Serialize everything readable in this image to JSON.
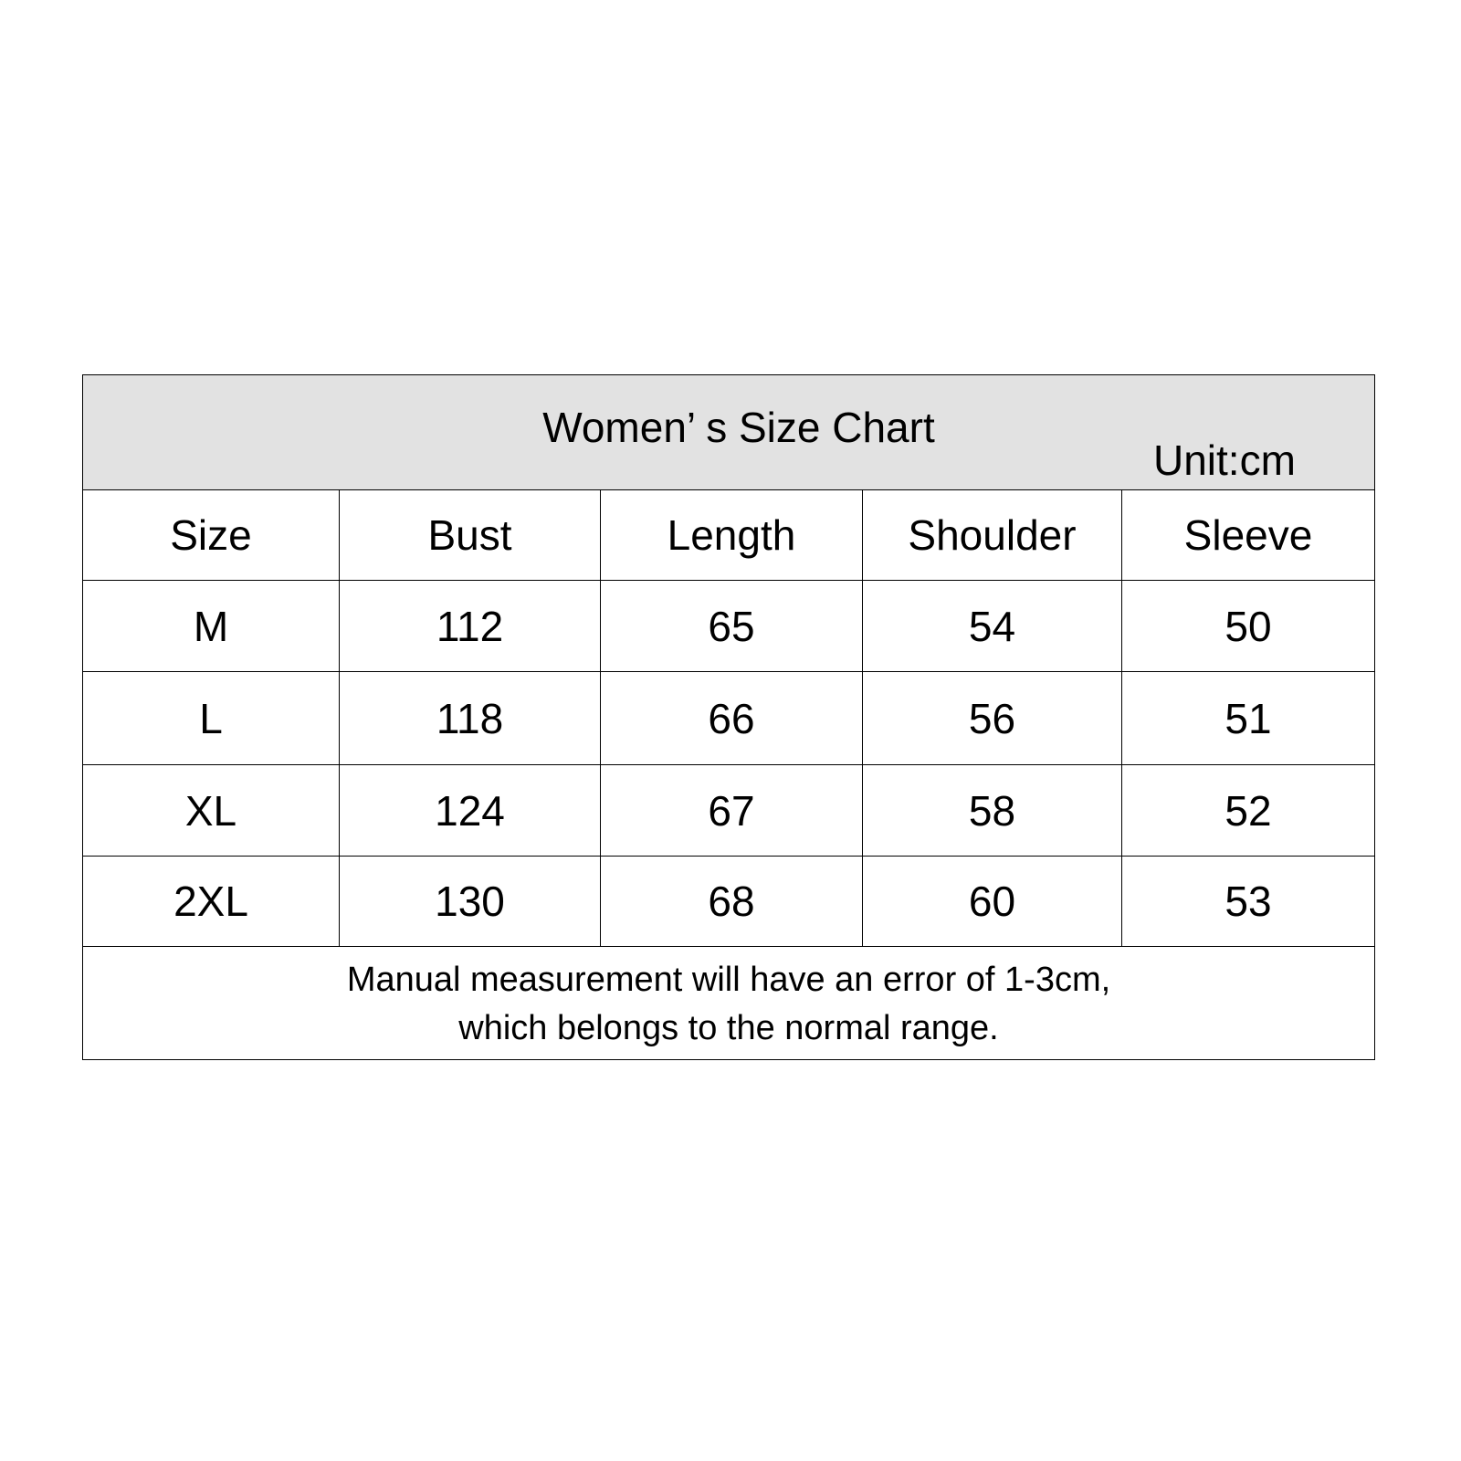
{
  "title": "Women’ s Size Chart",
  "unit": "Unit:cm",
  "headers": [
    "Size",
    "Bust",
    "Length",
    "Shoulder",
    "Sleeve"
  ],
  "rows": [
    [
      "M",
      "112",
      "65",
      "54",
      "50"
    ],
    [
      "L",
      "118",
      "66",
      "56",
      "51"
    ],
    [
      "XL",
      "124",
      "67",
      "58",
      "52"
    ],
    [
      "2XL",
      "130",
      "68",
      "60",
      "53"
    ]
  ],
  "note": [
    "Manual measurement will have an error of 1-3cm,",
    "which belongs to the normal range."
  ],
  "colors": {
    "header_bg": "#e2e2e2",
    "border": "#000000"
  }
}
